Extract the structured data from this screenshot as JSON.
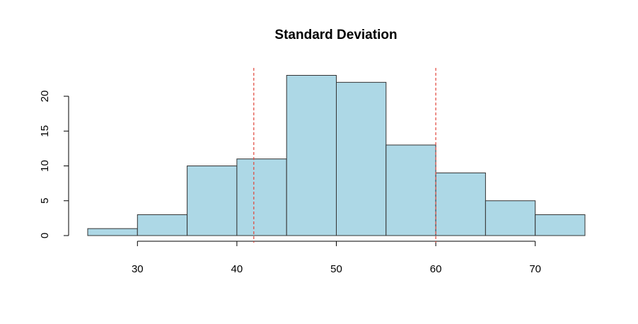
{
  "chart_data": {
    "type": "histogram",
    "title": "Standard Deviation",
    "bins": [
      25,
      30,
      35,
      40,
      45,
      50,
      55,
      60,
      65,
      70,
      75
    ],
    "values": [
      1,
      3,
      10,
      11,
      23,
      22,
      13,
      9,
      5,
      3
    ],
    "color": "#add8e6",
    "xlim": [
      25,
      75
    ],
    "xticks": [
      30,
      40,
      50,
      60,
      70
    ],
    "ylim": [
      0,
      23
    ],
    "yticks": [
      0,
      5,
      10,
      15,
      20
    ],
    "vlines": [
      41.7,
      60
    ],
    "vline_color": "#e0453a"
  }
}
